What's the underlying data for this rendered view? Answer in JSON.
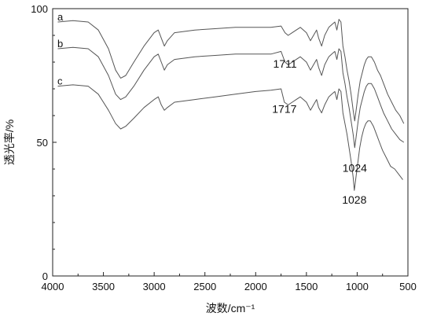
{
  "chart_data": {
    "type": "line",
    "xlabel": "波数/cm⁻¹",
    "ylabel": "透光率/%",
    "xlim": [
      4000,
      500
    ],
    "ylim": [
      0,
      100
    ],
    "x_ticks": [
      "4000",
      "3500",
      "3000",
      "2500",
      "2000",
      "1500",
      "1000",
      "500"
    ],
    "y_ticks": [
      "0",
      "50",
      "100"
    ],
    "grid": false,
    "series": [
      {
        "name": "a",
        "color": "#555555",
        "points": [
          [
            3950,
            95
          ],
          [
            3800,
            95.5
          ],
          [
            3650,
            95
          ],
          [
            3550,
            92
          ],
          [
            3450,
            85
          ],
          [
            3380,
            77
          ],
          [
            3330,
            74
          ],
          [
            3280,
            75
          ],
          [
            3200,
            80
          ],
          [
            3100,
            86
          ],
          [
            3000,
            91
          ],
          [
            2960,
            92
          ],
          [
            2930,
            89
          ],
          [
            2900,
            86
          ],
          [
            2870,
            88
          ],
          [
            2800,
            91
          ],
          [
            2600,
            92
          ],
          [
            2400,
            92.5
          ],
          [
            2200,
            93
          ],
          [
            2000,
            93
          ],
          [
            1850,
            93
          ],
          [
            1750,
            93.5
          ],
          [
            1711,
            91
          ],
          [
            1680,
            90
          ],
          [
            1640,
            91
          ],
          [
            1600,
            92
          ],
          [
            1560,
            93
          ],
          [
            1500,
            91
          ],
          [
            1460,
            88
          ],
          [
            1430,
            90
          ],
          [
            1400,
            92
          ],
          [
            1380,
            89
          ],
          [
            1350,
            86
          ],
          [
            1320,
            90
          ],
          [
            1280,
            93
          ],
          [
            1250,
            94
          ],
          [
            1220,
            95
          ],
          [
            1200,
            92
          ],
          [
            1180,
            96
          ],
          [
            1160,
            95
          ],
          [
            1140,
            86
          ],
          [
            1120,
            82
          ],
          [
            1100,
            77
          ],
          [
            1080,
            73
          ],
          [
            1060,
            68
          ],
          [
            1040,
            62
          ],
          [
            1024,
            58
          ],
          [
            1010,
            62
          ],
          [
            990,
            68
          ],
          [
            970,
            73
          ],
          [
            950,
            76
          ],
          [
            930,
            79
          ],
          [
            910,
            81
          ],
          [
            890,
            82
          ],
          [
            860,
            82
          ],
          [
            830,
            80
          ],
          [
            800,
            77
          ],
          [
            770,
            75
          ],
          [
            740,
            72
          ],
          [
            700,
            68
          ],
          [
            660,
            65
          ],
          [
            620,
            62
          ],
          [
            580,
            60
          ],
          [
            540,
            57
          ]
        ]
      },
      {
        "name": "b",
        "color": "#555555",
        "points": [
          [
            3950,
            85
          ],
          [
            3800,
            85.5
          ],
          [
            3650,
            85
          ],
          [
            3550,
            82
          ],
          [
            3450,
            75
          ],
          [
            3380,
            68
          ],
          [
            3330,
            66
          ],
          [
            3280,
            67
          ],
          [
            3200,
            71
          ],
          [
            3100,
            77
          ],
          [
            3000,
            82
          ],
          [
            2960,
            83
          ],
          [
            2930,
            80
          ],
          [
            2900,
            77
          ],
          [
            2870,
            79
          ],
          [
            2800,
            81
          ],
          [
            2600,
            82
          ],
          [
            2400,
            82.5
          ],
          [
            2200,
            83
          ],
          [
            2000,
            83
          ],
          [
            1850,
            83
          ],
          [
            1750,
            84
          ],
          [
            1711,
            80
          ],
          [
            1680,
            79
          ],
          [
            1640,
            80
          ],
          [
            1600,
            81
          ],
          [
            1560,
            82
          ],
          [
            1500,
            80
          ],
          [
            1460,
            77
          ],
          [
            1430,
            79
          ],
          [
            1400,
            81
          ],
          [
            1380,
            78
          ],
          [
            1350,
            75
          ],
          [
            1320,
            79
          ],
          [
            1280,
            82
          ],
          [
            1250,
            83
          ],
          [
            1220,
            84
          ],
          [
            1200,
            81
          ],
          [
            1180,
            85
          ],
          [
            1160,
            84
          ],
          [
            1140,
            76
          ],
          [
            1120,
            72
          ],
          [
            1100,
            67
          ],
          [
            1080,
            63
          ],
          [
            1060,
            58
          ],
          [
            1040,
            53
          ],
          [
            1024,
            48
          ],
          [
            1010,
            52
          ],
          [
            990,
            58
          ],
          [
            970,
            63
          ],
          [
            950,
            66
          ],
          [
            930,
            69
          ],
          [
            910,
            71
          ],
          [
            890,
            72
          ],
          [
            860,
            72
          ],
          [
            830,
            70
          ],
          [
            800,
            67
          ],
          [
            770,
            64
          ],
          [
            740,
            61
          ],
          [
            700,
            58
          ],
          [
            660,
            55
          ],
          [
            620,
            53
          ],
          [
            580,
            51
          ],
          [
            540,
            50
          ]
        ]
      },
      {
        "name": "c",
        "color": "#555555",
        "points": [
          [
            3950,
            71
          ],
          [
            3800,
            71.5
          ],
          [
            3650,
            71
          ],
          [
            3550,
            68
          ],
          [
            3450,
            62
          ],
          [
            3380,
            57
          ],
          [
            3330,
            55
          ],
          [
            3280,
            56
          ],
          [
            3200,
            59
          ],
          [
            3100,
            63
          ],
          [
            3000,
            66
          ],
          [
            2960,
            67
          ],
          [
            2930,
            64
          ],
          [
            2900,
            62
          ],
          [
            2870,
            63
          ],
          [
            2800,
            65
          ],
          [
            2600,
            66
          ],
          [
            2400,
            67
          ],
          [
            2200,
            68
          ],
          [
            2000,
            69
          ],
          [
            1850,
            69.5
          ],
          [
            1750,
            70
          ],
          [
            1717,
            65
          ],
          [
            1680,
            64
          ],
          [
            1640,
            65
          ],
          [
            1600,
            66
          ],
          [
            1560,
            67
          ],
          [
            1500,
            65
          ],
          [
            1460,
            62
          ],
          [
            1430,
            64
          ],
          [
            1400,
            66
          ],
          [
            1380,
            63
          ],
          [
            1350,
            61
          ],
          [
            1320,
            64
          ],
          [
            1280,
            67
          ],
          [
            1250,
            68
          ],
          [
            1220,
            69
          ],
          [
            1200,
            66
          ],
          [
            1180,
            70
          ],
          [
            1160,
            69
          ],
          [
            1140,
            61
          ],
          [
            1120,
            57
          ],
          [
            1100,
            53
          ],
          [
            1080,
            48
          ],
          [
            1060,
            43
          ],
          [
            1040,
            37
          ],
          [
            1028,
            32
          ],
          [
            1015,
            36
          ],
          [
            995,
            42
          ],
          [
            975,
            48
          ],
          [
            955,
            52
          ],
          [
            935,
            55
          ],
          [
            915,
            57
          ],
          [
            895,
            58
          ],
          [
            870,
            58
          ],
          [
            840,
            56
          ],
          [
            810,
            53
          ],
          [
            780,
            50
          ],
          [
            750,
            47
          ],
          [
            710,
            44
          ],
          [
            670,
            41
          ],
          [
            630,
            40
          ],
          [
            590,
            38
          ],
          [
            550,
            36
          ]
        ]
      }
    ],
    "annotations": [
      {
        "text": "1711",
        "x": 1711,
        "y": 83
      },
      {
        "text": "1717",
        "x": 1717,
        "y": 66
      },
      {
        "text": "1024",
        "x": 1024,
        "y": 44
      },
      {
        "text": "1028",
        "x": 1028,
        "y": 32
      }
    ]
  }
}
